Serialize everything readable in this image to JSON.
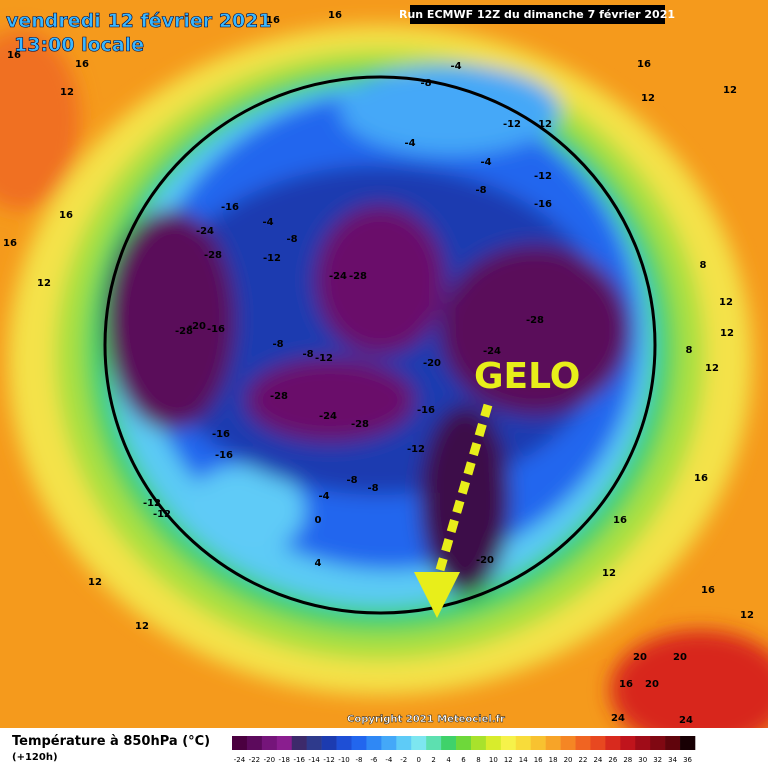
{
  "header": {
    "date": "vendredi 12 février 2021",
    "time": "13:00 locale",
    "run": "Run ECMWF 12Z du dimanche 7 février 2021"
  },
  "annotation": "GELO",
  "copyright": "Copyright 2021 Meteociel.fr",
  "legend": {
    "title": "Température à 850hPa (°C)",
    "subtitle": "(+120h)",
    "ticks": [
      -24,
      -22,
      -20,
      -18,
      -16,
      -14,
      -12,
      -10,
      -8,
      -6,
      -4,
      -2,
      0,
      2,
      4,
      6,
      8,
      10,
      12,
      14,
      16,
      18,
      20,
      22,
      24,
      26,
      28,
      30,
      32,
      34,
      36
    ],
    "colors": [
      "#4b0040",
      "#5c0a5c",
      "#75157a",
      "#8a1e8f",
      "#3d2a6b",
      "#2e3a8c",
      "#1c3bb0",
      "#1e4fd6",
      "#2266ee",
      "#2f88f5",
      "#44a8f8",
      "#5ecbf7",
      "#7de6f0",
      "#5de0b0",
      "#3fd26a",
      "#6ed83a",
      "#a8e22c",
      "#d8ec2c",
      "#f6f24a",
      "#f8dc3a",
      "#f8c230",
      "#f7a428",
      "#f58624",
      "#f06422",
      "#e84820",
      "#d82a1e",
      "#c0141c",
      "#a00c18",
      "#800812",
      "#60040c",
      "#180004"
    ]
  },
  "contour_labels": [
    16,
    16,
    16,
    16,
    12,
    16,
    12,
    12,
    16,
    16,
    12,
    -4,
    -8,
    -4,
    -12,
    -12,
    -4,
    -12,
    -8,
    -16,
    -16,
    -4,
    -24,
    -8,
    -28,
    -12,
    -24,
    -28,
    -28,
    -20,
    -16,
    -28,
    -8,
    -8,
    -12,
    -24,
    -20,
    -28,
    -24,
    -16,
    -28,
    -12,
    -16,
    -16,
    -8,
    -8,
    -4,
    -12,
    -12,
    0,
    4,
    -20,
    12,
    12,
    8,
    12,
    12,
    8,
    12,
    16,
    16,
    12,
    16,
    12,
    20,
    20,
    16,
    20,
    24,
    24
  ]
}
